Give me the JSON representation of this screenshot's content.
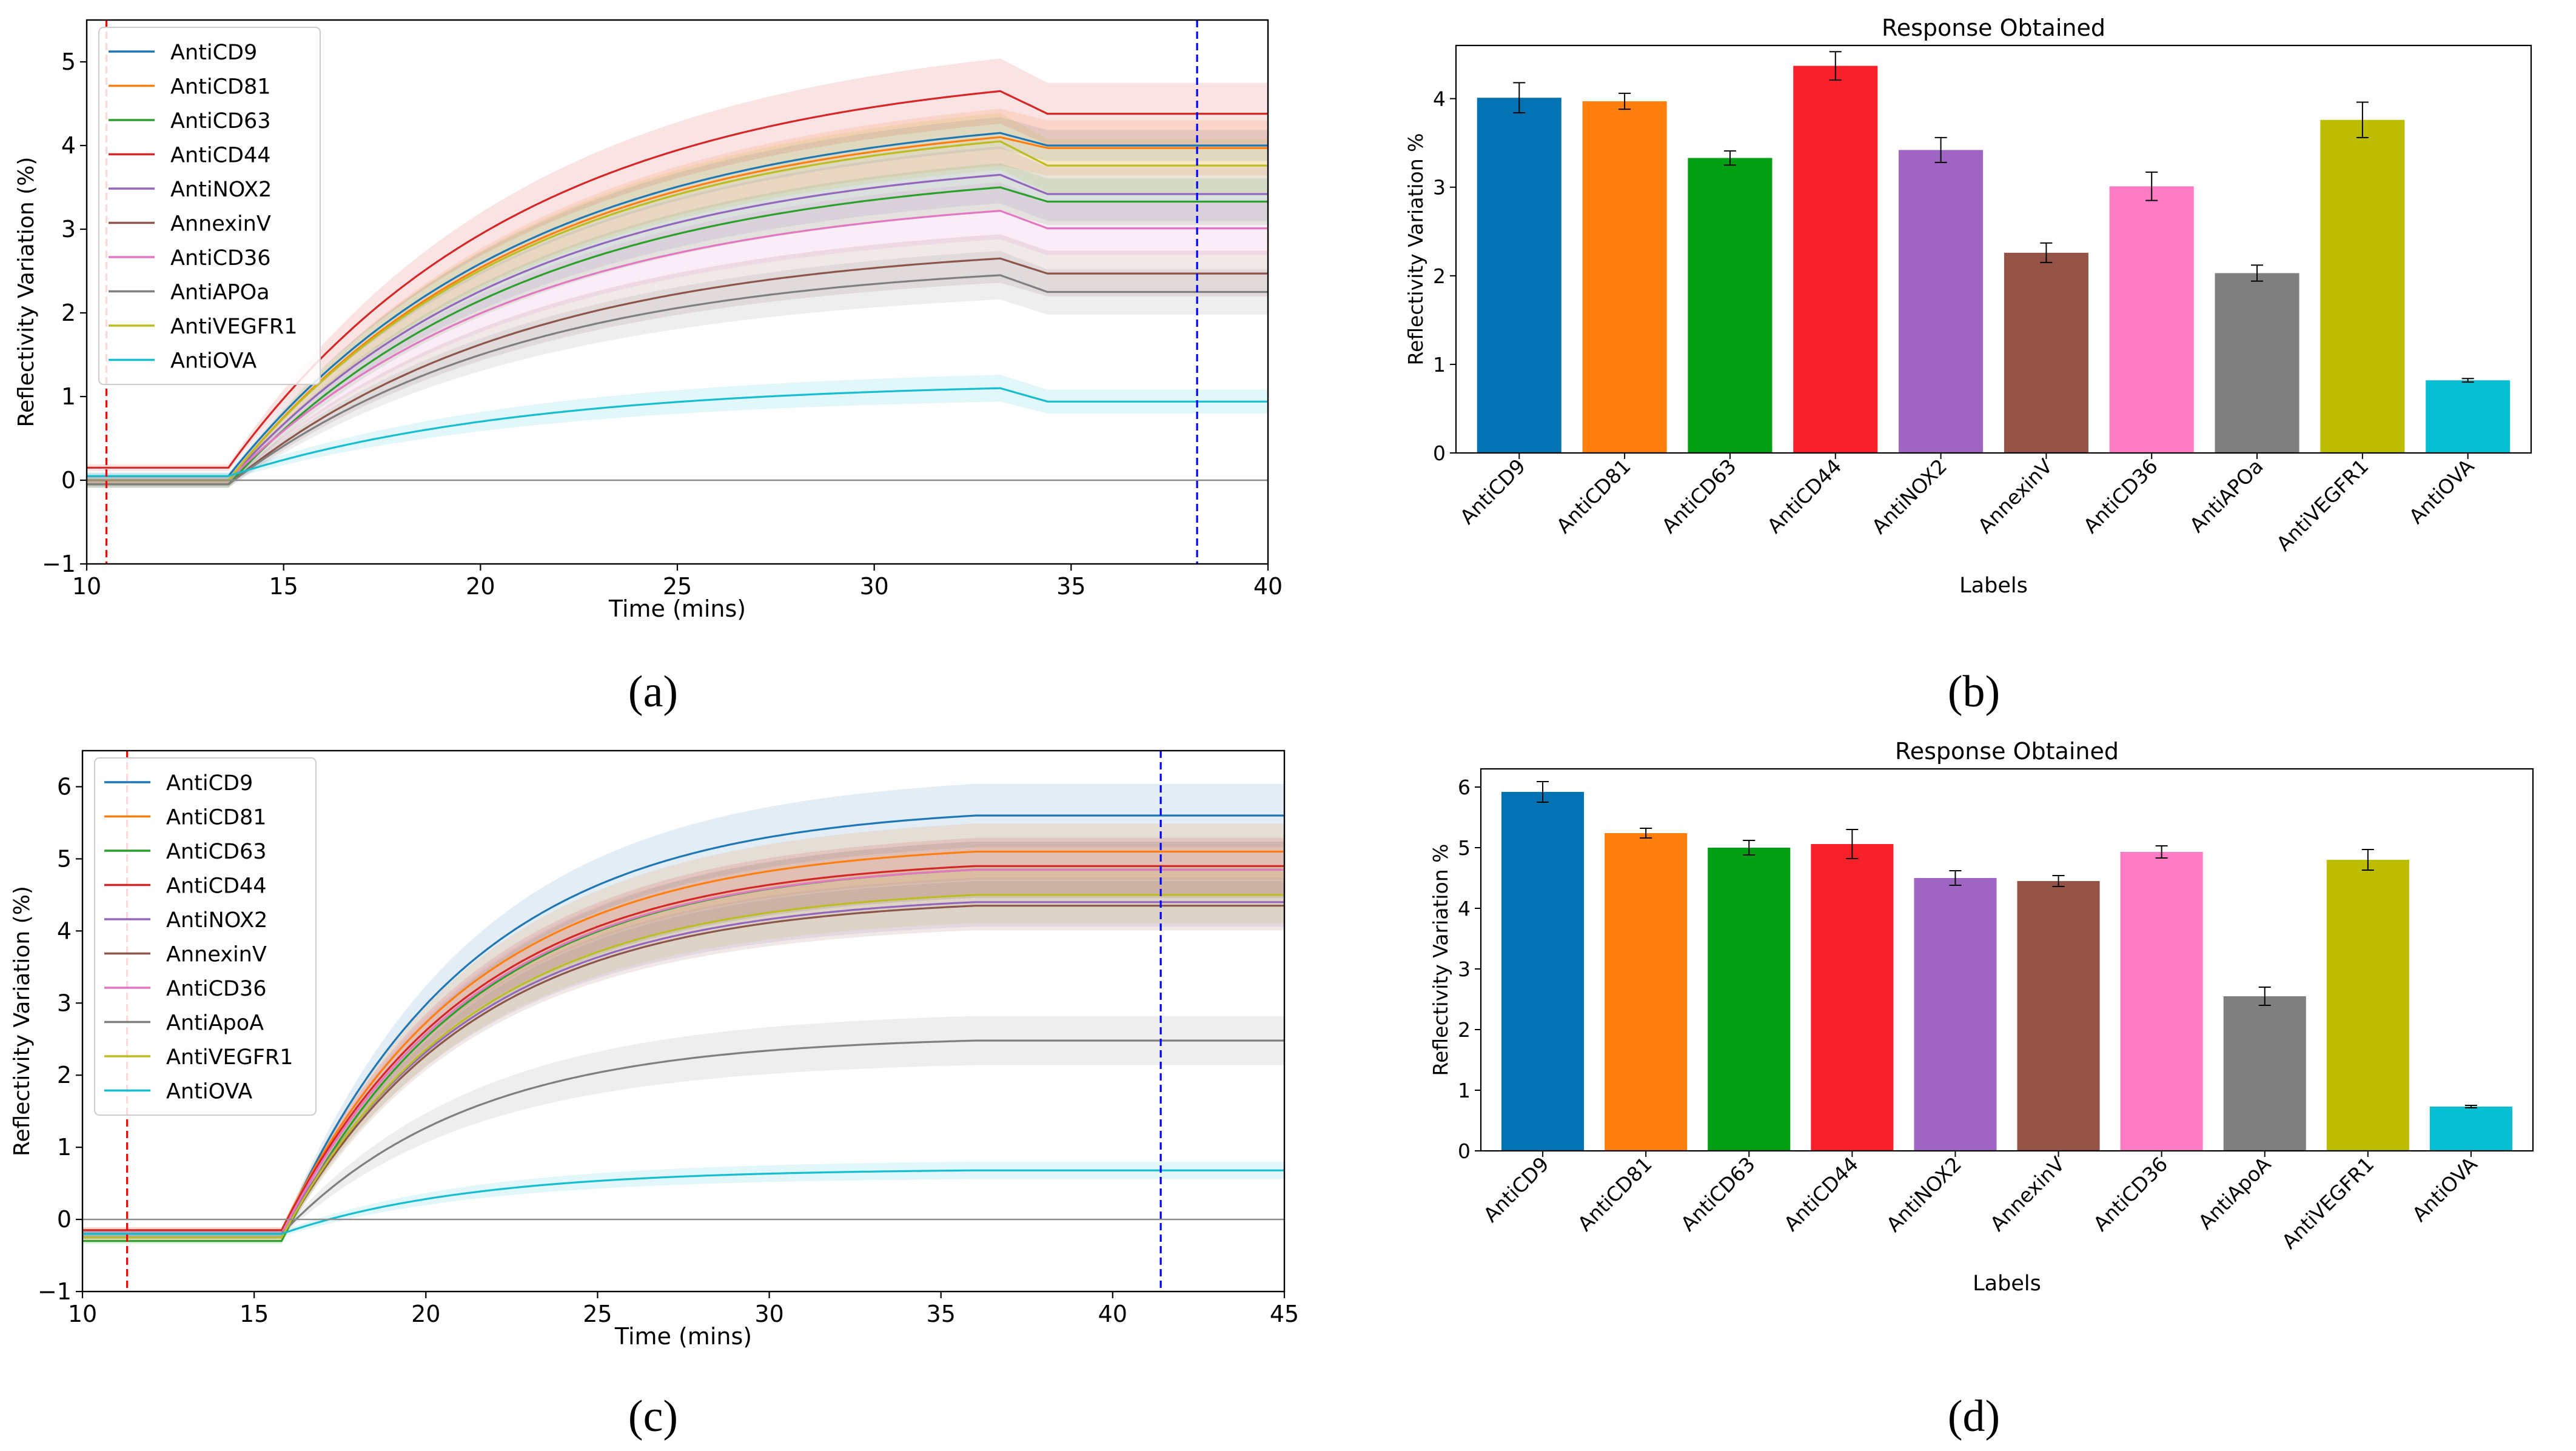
{
  "panels": [
    {
      "letter": "(a)"
    },
    {
      "letter": "(b)"
    },
    {
      "letter": "(c)"
    },
    {
      "letter": "(d)"
    }
  ],
  "chart_data": [
    {
      "id": "a",
      "type": "line",
      "title": "",
      "xlabel": "Time (mins)",
      "ylabel": "Reflectivity Variation (%)",
      "xlim": [
        10,
        40
      ],
      "ylim": [
        -1,
        5.5
      ],
      "xticks": [
        10,
        15,
        20,
        25,
        30,
        35,
        40
      ],
      "yticks": [
        -1,
        0,
        1,
        2,
        3,
        4,
        5
      ],
      "ytick_labels": [
        "−1",
        "0",
        "1",
        "2",
        "3",
        "4",
        "5"
      ],
      "baseline": 0,
      "red_marker_x": 10.5,
      "blue_marker_x": 38.2,
      "rise_start": 13.6,
      "rise_tau": 7.5,
      "plateau_start": 33.2,
      "legend_location": "upper-left",
      "series": [
        {
          "name": "AntiCD9",
          "color": "#1f77b4",
          "base": 0.05,
          "peak": 4.15,
          "final": 4.0,
          "band": 0.15
        },
        {
          "name": "AntiCD81",
          "color": "#ff7f0e",
          "base": 0.0,
          "peak": 4.1,
          "final": 3.97,
          "band": 0.3
        },
        {
          "name": "AntiCD63",
          "color": "#2ca02c",
          "base": -0.05,
          "peak": 3.5,
          "final": 3.33,
          "band": 0.25
        },
        {
          "name": "AntiCD44",
          "color": "#d62728",
          "base": 0.15,
          "peak": 4.65,
          "final": 4.38,
          "band": 0.35
        },
        {
          "name": "AntiNOX2",
          "color": "#9467bd",
          "base": 0.0,
          "peak": 3.65,
          "final": 3.42,
          "band": 0.3
        },
        {
          "name": "AnnexinV",
          "color": "#8c564b",
          "base": -0.05,
          "peak": 2.65,
          "final": 2.47,
          "band": 0.25
        },
        {
          "name": "AntiCD36",
          "color": "#e377c2",
          "base": 0.0,
          "peak": 3.22,
          "final": 3.01,
          "band": 0.3
        },
        {
          "name": "AntiAPOa",
          "color": "#7f7f7f",
          "base": -0.05,
          "peak": 2.45,
          "final": 2.25,
          "band": 0.25
        },
        {
          "name": "AntiVEGFR1",
          "color": "#bcbd22",
          "base": 0.0,
          "peak": 4.05,
          "final": 3.76,
          "band": 0.3
        },
        {
          "name": "AntiOVA",
          "color": "#17becf",
          "base": 0.05,
          "peak": 1.1,
          "final": 0.94,
          "band": 0.12
        }
      ]
    },
    {
      "id": "b",
      "type": "bar",
      "title": "Response Obtained",
      "xlabel": "Labels",
      "ylabel": "Reflectivity Variation %",
      "ylim": [
        0,
        4.6
      ],
      "yticks": [
        0,
        1,
        2,
        3,
        4
      ],
      "categories": [
        "AntiCD9",
        "AntiCD81",
        "AntiCD63",
        "AntiCD44",
        "AntiNOX2",
        "AnnexinV",
        "AntiCD36",
        "AntiAPOa",
        "AntiVEGFR1",
        "AntiOVA"
      ],
      "values": [
        4.01,
        3.97,
        3.33,
        4.37,
        3.42,
        2.26,
        3.01,
        2.03,
        3.76,
        0.82
      ],
      "errors": [
        0.17,
        0.09,
        0.08,
        0.16,
        0.14,
        0.11,
        0.16,
        0.09,
        0.2,
        0.02
      ],
      "colors": [
        "#0173b2",
        "#ff7f0e",
        "#029e14",
        "#f8202a",
        "#a064c3",
        "#955247",
        "#ff7cc5",
        "#7f7f7f",
        "#bcbc00",
        "#06bfd2"
      ]
    },
    {
      "id": "c",
      "type": "line",
      "title": "",
      "xlabel": "Time (mins)",
      "ylabel": "Reflectivity Variation (%)",
      "xlim": [
        10,
        45
      ],
      "ylim": [
        -1,
        6.5
      ],
      "xticks": [
        10,
        15,
        20,
        25,
        30,
        35,
        40,
        45
      ],
      "yticks": [
        -1,
        0,
        1,
        2,
        3,
        4,
        5,
        6
      ],
      "ytick_labels": [
        "−1",
        "0",
        "1",
        "2",
        "3",
        "4",
        "5",
        "6"
      ],
      "baseline": 0,
      "red_marker_x": 11.3,
      "blue_marker_x": 41.4,
      "rise_start": 15.8,
      "rise_tau": 5.5,
      "plateau_start": 36.0,
      "legend_location": "upper-left",
      "series": [
        {
          "name": "AntiCD9",
          "color": "#1f77b4",
          "base": -0.2,
          "peak": 5.6,
          "final": 5.6,
          "band": 0.4
        },
        {
          "name": "AntiCD81",
          "color": "#ff7f0e",
          "base": -0.15,
          "peak": 5.1,
          "final": 5.1,
          "band": 0.35
        },
        {
          "name": "AntiCD63",
          "color": "#2ca02c",
          "base": -0.3,
          "peak": 4.85,
          "final": 4.85,
          "band": 0.35
        },
        {
          "name": "AntiCD44",
          "color": "#d62728",
          "base": -0.15,
          "peak": 4.9,
          "final": 4.9,
          "band": 0.35
        },
        {
          "name": "AntiNOX2",
          "color": "#9467bd",
          "base": -0.2,
          "peak": 4.4,
          "final": 4.4,
          "band": 0.3
        },
        {
          "name": "AnnexinV",
          "color": "#8c564b",
          "base": -0.25,
          "peak": 4.35,
          "final": 4.35,
          "band": 0.3
        },
        {
          "name": "AntiCD36",
          "color": "#e377c2",
          "base": -0.2,
          "peak": 4.85,
          "final": 4.85,
          "band": 0.35
        },
        {
          "name": "AntiApoA",
          "color": "#7f7f7f",
          "base": -0.2,
          "peak": 2.48,
          "final": 2.48,
          "band": 0.3
        },
        {
          "name": "AntiVEGFR1",
          "color": "#bcbd22",
          "base": -0.25,
          "peak": 4.5,
          "final": 4.5,
          "band": 0.35
        },
        {
          "name": "AntiOVA",
          "color": "#17becf",
          "base": -0.2,
          "peak": 0.68,
          "final": 0.68,
          "band": 0.08
        }
      ]
    },
    {
      "id": "d",
      "type": "bar",
      "title": "Response Obtained",
      "xlabel": "Labels",
      "ylabel": "Reflectivity Variation %",
      "ylim": [
        0,
        6.3
      ],
      "yticks": [
        0,
        1,
        2,
        3,
        4,
        5,
        6
      ],
      "categories": [
        "AntiCD9",
        "AntiCD81",
        "AntiCD63",
        "AntiCD44",
        "AntiNOX2",
        "AnnexinV",
        "AntiCD36",
        "AntiApoA",
        "AntiVEGFR1",
        "AntiOVA"
      ],
      "values": [
        5.92,
        5.24,
        5.0,
        5.06,
        4.5,
        4.45,
        4.93,
        2.55,
        4.8,
        0.73
      ],
      "errors": [
        0.17,
        0.08,
        0.12,
        0.24,
        0.12,
        0.09,
        0.1,
        0.15,
        0.17,
        0.02
      ],
      "colors": [
        "#0173b2",
        "#ff7f0e",
        "#029e14",
        "#f8202a",
        "#a064c3",
        "#955247",
        "#ff7cc5",
        "#7f7f7f",
        "#bcbc00",
        "#06bfd2"
      ]
    }
  ]
}
